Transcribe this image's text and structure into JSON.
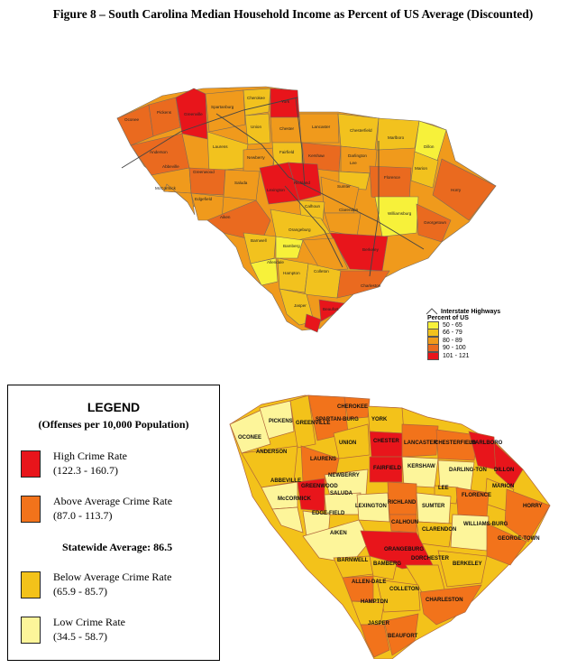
{
  "figure_title": "Figure 8 – South Carolina Median Household Income as Percent of US Average (Discounted)",
  "map1": {
    "legend": {
      "highways_label": "Interstate Highways",
      "heading": "Percent of US",
      "classes": [
        {
          "label": "50 - 65",
          "color": "#f7f13a"
        },
        {
          "label": "66 - 79",
          "color": "#f2c21e"
        },
        {
          "label": "80 - 89",
          "color": "#f09a1c"
        },
        {
          "label": "90 - 100",
          "color": "#ea6a1f"
        },
        {
          "label": "101 - 121",
          "color": "#e8151b"
        }
      ]
    },
    "county_labels": [
      "Oconee",
      "Pickens",
      "Greenville",
      "Spartanburg",
      "Cherokee",
      "York",
      "Union",
      "Chester",
      "Lancaster",
      "Chesterfield",
      "Marlboro",
      "Dillon",
      "Anderson",
      "Laurens",
      "Newberry",
      "Fairfield",
      "Kershaw",
      "Darlington",
      "Marion",
      "Abbeville",
      "Greenwood",
      "Saluda",
      "Lexington",
      "Richland",
      "Lee",
      "Florence",
      "Horry",
      "McCormick",
      "Edgefield",
      "Sumter",
      "Calhoun",
      "Clarendon",
      "Williamsburg",
      "Aiken",
      "Orangeburg",
      "Georgetown",
      "Barnwell",
      "Bamberg",
      "Berkeley",
      "Allendale",
      "Hampton",
      "Colleton",
      "Charleston",
      "Jasper",
      "Beaufort"
    ]
  },
  "crime_legend": {
    "title": "LEGEND",
    "subtitle": "(Offenses per 10,000 Population)",
    "entries": [
      {
        "label": "High Crime Rate",
        "range": "(122.3 - 160.7)",
        "color": "#e8151b"
      },
      {
        "label": "Above Average Crime Rate",
        "range": "(87.0 - 113.7)",
        "color": "#f2731b"
      },
      {
        "label": "Below Average Crime Rate",
        "range": "(65.9 - 85.7)",
        "color": "#f3c21a"
      },
      {
        "label": "Low Crime Rate",
        "range": "(34.5 - 58.7)",
        "color": "#fdf59a"
      }
    ],
    "statewide_average": "Statewide Average: 86.5"
  },
  "map2": {
    "county_labels": [
      "CHEROKEE",
      "YORK",
      "PICKENS",
      "SPARTAN-BURG",
      "OCONEE",
      "UNION",
      "CHESTER",
      "LANCASTER",
      "CHESTERFIELD",
      "MARLBORO",
      "GREENVILLE",
      "ANDERSON",
      "LAURENS",
      "FAIRFIELD",
      "KERSHAW",
      "DARLING-TON",
      "DILLON",
      "NEWBERRY",
      "LEE",
      "MARION",
      "ABBEVILLE",
      "GREENWOOD",
      "SALUDA",
      "FLORENCE",
      "McCORMICK",
      "LEXINGTON",
      "RICHLAND",
      "SUMTER",
      "HORRY",
      "EDGE-FIELD",
      "CALHOUN",
      "CLARENDON",
      "WILLIAMS-BURG",
      "GEORGE-TOWN",
      "AIKEN",
      "ORANGEBURG",
      "BARNWELL",
      "BAMBERG",
      "DORCHESTER",
      "BERKELEY",
      "ALLEN-DALE",
      "COLLETON",
      "HAMPTON",
      "CHARLESTON",
      "JASPER",
      "BEAUFORT"
    ]
  }
}
